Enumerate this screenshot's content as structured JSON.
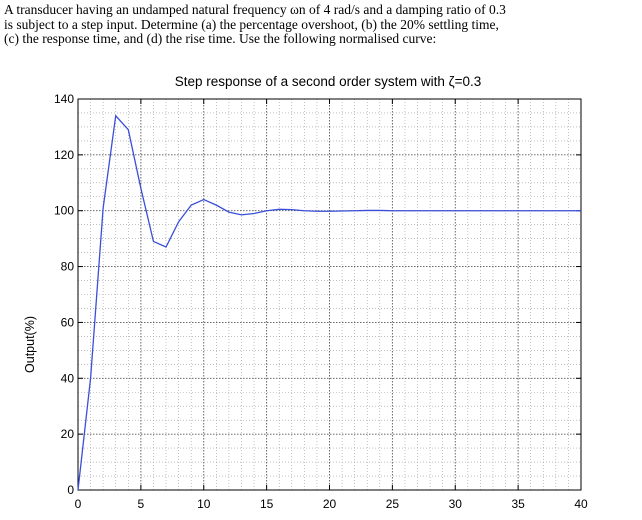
{
  "problem": {
    "lines": [
      "A transducer having an undamped natural frequency ωn of 4 rad/s and a damping ratio of 0.3",
      "is subject to a step input. Determine (a) the percentage overshoot, (b) the 20% settling time,",
      "(c) the response time, and (d) the rise time. Use the following normalised curve:"
    ]
  },
  "chart_data": {
    "type": "line",
    "title": "Step response of a second order system with ζ=0.3",
    "xlabel": "",
    "ylabel": "Output(%)",
    "xlim": [
      0,
      40
    ],
    "ylim": [
      0,
      140
    ],
    "xticks": [
      0,
      5,
      10,
      15,
      20,
      25,
      30,
      35,
      40
    ],
    "yticks": [
      0,
      20,
      40,
      60,
      80,
      100,
      120,
      140
    ],
    "grid": true,
    "series": [
      {
        "color": "#3a4fd8",
        "x": [
          0,
          1,
          2,
          3,
          4,
          5,
          6,
          7,
          8,
          9,
          10,
          11,
          12,
          13,
          14,
          15,
          16,
          17,
          18,
          19,
          20,
          21,
          22,
          23,
          24,
          25,
          26,
          27,
          28,
          29,
          30,
          31,
          32,
          33,
          34,
          35,
          36,
          37,
          38,
          39,
          40
        ],
        "y": [
          0,
          40,
          101,
          134,
          129,
          108,
          89,
          87,
          96,
          102,
          104,
          102,
          99.5,
          98.5,
          99,
          100,
          100.5,
          100.4,
          100,
          99.8,
          99.8,
          99.9,
          100,
          100.1,
          100.1,
          100,
          100,
          100,
          100,
          100,
          100,
          100,
          100,
          100,
          100,
          100,
          100,
          100,
          100,
          100,
          100
        ]
      }
    ]
  }
}
